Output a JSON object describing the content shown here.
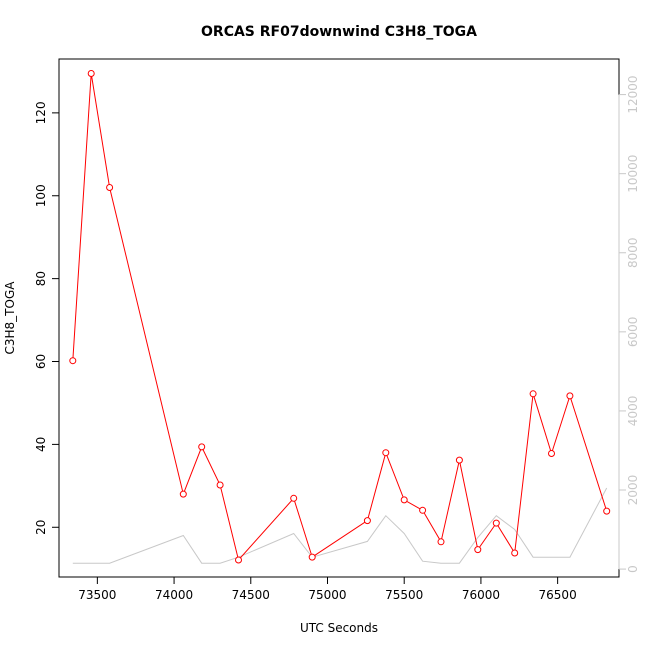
{
  "chart_data": {
    "type": "line",
    "title": "ORCAS RF07downwind C3H8_TOGA",
    "xlabel": "UTC Seconds",
    "ylabel": "C3H8_TOGA",
    "xlim": [
      73250,
      76900
    ],
    "ylim": [
      8,
      133
    ],
    "x_ticks": [
      73500,
      74000,
      74500,
      75000,
      75500,
      76000,
      76500
    ],
    "y_ticks": [
      20,
      40,
      60,
      80,
      100,
      120
    ],
    "y2lim": [
      -200,
      12900
    ],
    "y2_ticks": [
      0,
      2000,
      4000,
      6000,
      8000,
      10000,
      12000
    ],
    "grid": false,
    "series": [
      {
        "color": "#ff0000",
        "marker": "open-circle",
        "axis": "left",
        "x": [
          73340,
          73460,
          73580,
          74060,
          74180,
          74300,
          74420,
          74780,
          74900,
          75260,
          75380,
          75500,
          75620,
          75740,
          75860,
          75980,
          76100,
          76220,
          76340,
          76460,
          76580,
          76820
        ],
        "y": [
          60.2,
          129.5,
          102,
          28,
          39.4,
          30.2,
          12.1,
          27,
          12.8,
          21.6,
          38,
          26.6,
          24.1,
          16.5,
          36.2,
          14.6,
          21,
          13.8,
          52.2,
          37.8,
          51.7,
          23.9
        ]
      },
      {
        "color": "#c8c8c8",
        "marker": "none",
        "axis": "right",
        "x": [
          73340,
          73580,
          74060,
          74180,
          74300,
          74420,
          74780,
          74900,
          75260,
          75380,
          75500,
          75620,
          75740,
          75860,
          75980,
          76100,
          76220,
          76340,
          76460,
          76580,
          76820
        ],
        "y": [
          150,
          150,
          850,
          150,
          150,
          300,
          900,
          300,
          700,
          1350,
          900,
          200,
          150,
          150,
          800,
          1350,
          1000,
          300,
          300,
          300,
          2050
        ]
      }
    ]
  }
}
